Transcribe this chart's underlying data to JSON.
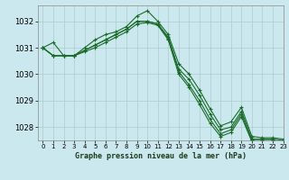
{
  "title": "Graphe pression niveau de la mer (hPa)",
  "background_color": "#cce8ef",
  "grid_color": "#aacccc",
  "line_color": "#1a6b2a",
  "ylim": [
    1027.5,
    1032.6
  ],
  "xlim": [
    -0.5,
    23
  ],
  "yticks": [
    1028,
    1029,
    1030,
    1031,
    1032
  ],
  "xticks": [
    0,
    1,
    2,
    3,
    4,
    5,
    6,
    7,
    8,
    9,
    10,
    11,
    12,
    13,
    14,
    15,
    16,
    17,
    18,
    19,
    20,
    21,
    22,
    23
  ],
  "series": [
    [
      1031.0,
      1031.2,
      1030.7,
      1030.7,
      1031.0,
      1031.3,
      1031.5,
      1031.6,
      1031.8,
      1032.2,
      1032.4,
      1032.0,
      1031.5,
      1030.4,
      1030.0,
      1029.4,
      1028.7,
      1028.05,
      1028.2,
      1028.75,
      1027.65,
      1027.6,
      1027.6,
      1027.55
    ],
    [
      1031.0,
      1030.7,
      1030.7,
      1030.7,
      1030.9,
      1031.1,
      1031.3,
      1031.5,
      1031.7,
      1032.0,
      1032.0,
      1031.9,
      1031.4,
      1030.2,
      1029.8,
      1029.2,
      1028.5,
      1027.9,
      1028.0,
      1028.6,
      1027.55,
      1027.55,
      1027.55,
      1027.5
    ],
    [
      1031.0,
      1030.7,
      1030.7,
      1030.7,
      1030.9,
      1031.1,
      1031.3,
      1031.5,
      1031.7,
      1032.0,
      1032.0,
      1031.9,
      1031.35,
      1030.1,
      1029.6,
      1029.0,
      1028.3,
      1027.75,
      1027.9,
      1028.5,
      1027.5,
      1027.5,
      1027.5,
      1027.45
    ],
    [
      1031.0,
      1030.7,
      1030.7,
      1030.7,
      1030.85,
      1031.0,
      1031.2,
      1031.4,
      1031.6,
      1031.9,
      1031.95,
      1031.85,
      1031.3,
      1030.0,
      1029.5,
      1028.85,
      1028.15,
      1027.65,
      1027.8,
      1028.4,
      1027.45,
      1027.45,
      1027.45,
      1027.4
    ]
  ],
  "figsize": [
    3.2,
    2.0
  ],
  "dpi": 100
}
